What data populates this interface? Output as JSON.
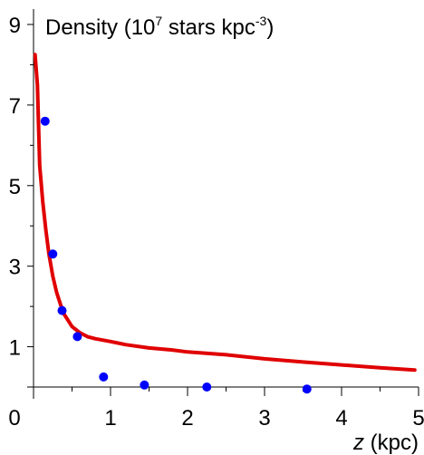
{
  "chart_data": {
    "type": "scatter",
    "title": {
      "prefix": "Density (10",
      "exp1": "7",
      "middle": " stars kpc",
      "exp2": "-3",
      "suffix": ")"
    },
    "xlabel": {
      "var": "z",
      "unit": " (kpc)"
    },
    "xlim": [
      0,
      5
    ],
    "ylim": [
      0,
      9.6
    ],
    "x_ticks": [
      0,
      1,
      2,
      3,
      4,
      5
    ],
    "x_tick_labels": [
      "0",
      "1",
      "2",
      "3",
      "4",
      "5"
    ],
    "y_ticks": [
      1,
      3,
      5,
      7,
      9
    ],
    "y_tick_labels": [
      "1",
      "3",
      "5",
      "7",
      "9"
    ],
    "y_minor_ticks": [
      2,
      4,
      6,
      8
    ],
    "x_minor_ticks": [
      0.5,
      1.5,
      2.5,
      3.5,
      4.5
    ],
    "grid": false,
    "series": [
      {
        "kind": "points",
        "color": "#0000ff",
        "x": [
          0.15,
          0.25,
          0.37,
          0.57,
          0.91,
          1.44,
          2.25,
          3.55
        ],
        "y": [
          6.6,
          3.3,
          1.9,
          1.25,
          0.25,
          0.05,
          0.0,
          -0.05
        ]
      },
      {
        "kind": "curve",
        "color": "#e00000",
        "x": [
          0.02,
          0.05,
          0.08,
          0.12,
          0.16,
          0.2,
          0.25,
          0.3,
          0.35,
          0.4,
          0.5,
          0.6,
          0.7,
          0.8,
          1.0,
          1.2,
          1.5,
          1.8,
          2.0,
          2.5,
          3.0,
          3.5,
          4.0,
          4.5,
          4.95
        ],
        "y": [
          8.25,
          7.5,
          5.5,
          4.6,
          3.9,
          3.3,
          2.75,
          2.35,
          2.05,
          1.8,
          1.5,
          1.35,
          1.25,
          1.2,
          1.13,
          1.05,
          0.97,
          0.92,
          0.87,
          0.8,
          0.7,
          0.62,
          0.55,
          0.48,
          0.42
        ]
      }
    ]
  }
}
